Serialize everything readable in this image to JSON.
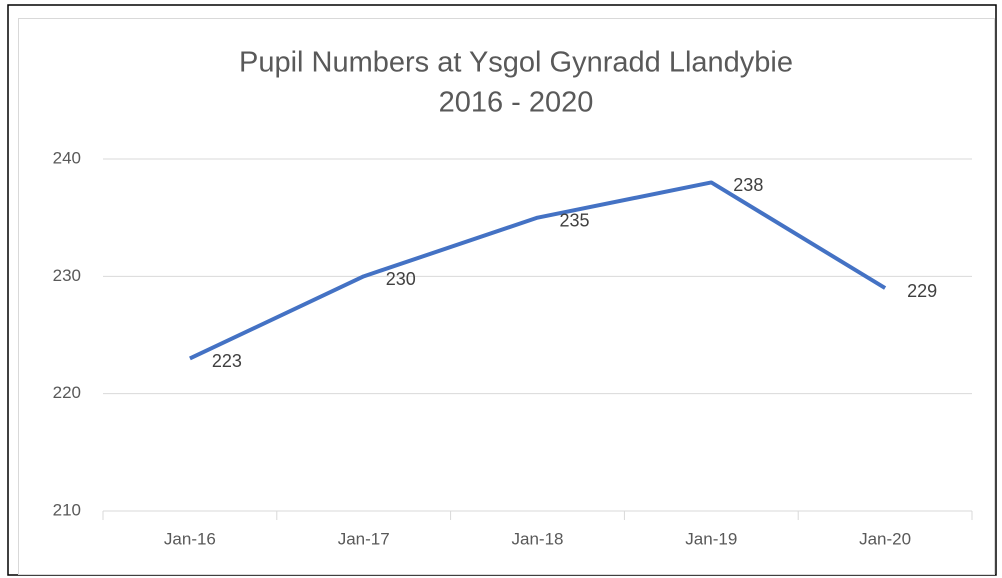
{
  "chart_data": {
    "type": "line",
    "title": "Pupil Numbers at Ysgol Gynradd Llandybie",
    "subtitle": "2016 - 2020",
    "categories": [
      "Jan-16",
      "Jan-17",
      "Jan-18",
      "Jan-19",
      "Jan-20"
    ],
    "values": [
      223,
      230,
      235,
      238,
      229
    ],
    "color": "#4472c4",
    "ylim": [
      210,
      240
    ],
    "yticks": [
      210,
      220,
      230,
      240
    ],
    "grid": true,
    "data_labels": true
  }
}
